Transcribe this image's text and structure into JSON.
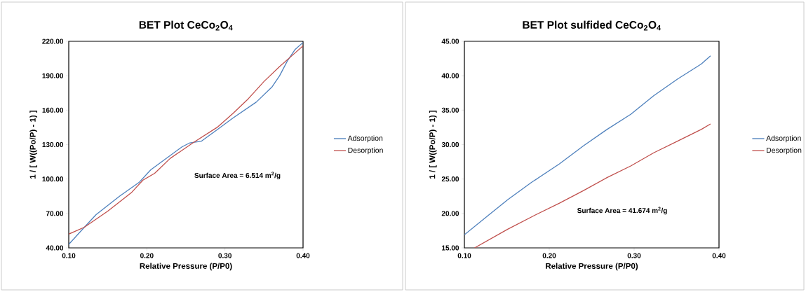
{
  "chart_data": [
    {
      "type": "line",
      "title": "BET Plot CeCo$_{2}$O$_{4}$",
      "xlabel": "Relative Pressure (P/P0)",
      "ylabel": "1 / [ W((Po/P) - 1) ]",
      "xlim": [
        0.1,
        0.4
      ],
      "ylim": [
        40,
        220
      ],
      "xticks": [
        {
          "value": 0.1,
          "label": "0.10"
        },
        {
          "value": 0.2,
          "label": "0.20"
        },
        {
          "value": 0.3,
          "label": "0.30"
        },
        {
          "value": 0.4,
          "label": "0.40"
        }
      ],
      "yticks": [
        {
          "value": 40,
          "label": "40.00"
        },
        {
          "value": 70,
          "label": "70.00"
        },
        {
          "value": 100,
          "label": "100.00"
        },
        {
          "value": 130,
          "label": "130.00"
        },
        {
          "value": 160,
          "label": "160.00"
        },
        {
          "value": 190,
          "label": "190.00"
        },
        {
          "value": 220,
          "label": "220.00"
        }
      ],
      "legend": "right",
      "grid": false,
      "marker": "none",
      "annotations": [
        "Surface Area = 6.514 m$^{2}$/g"
      ],
      "series": [
        {
          "name": "Adsorption",
          "color": "#4f81bd",
          "x": [
            0.1,
            0.12,
            0.135,
            0.165,
            0.19,
            0.205,
            0.225,
            0.245,
            0.255,
            0.27,
            0.29,
            0.31,
            0.34,
            0.36,
            0.37,
            0.38,
            0.39,
            0.4
          ],
          "values": [
            43,
            58,
            69,
            85,
            97,
            108,
            118,
            128,
            131.5,
            133,
            143,
            153,
            167,
            180,
            190,
            203,
            213,
            219
          ]
        },
        {
          "name": "Desorption",
          "color": "#c0504d",
          "x": [
            0.1,
            0.12,
            0.15,
            0.18,
            0.195,
            0.21,
            0.23,
            0.26,
            0.29,
            0.31,
            0.33,
            0.35,
            0.37,
            0.39,
            0.4
          ],
          "values": [
            52,
            58,
            72,
            88,
            99,
            105,
            118,
            132,
            145,
            157,
            170,
            185,
            198,
            210,
            216
          ]
        }
      ]
    },
    {
      "type": "line",
      "title": "BET Plot sulfided CeCo$_{2}$O$_{4}$",
      "xlabel": "Relative Pressure (P/P0)",
      "ylabel": "1 / [ W((Po/P) - 1) ]",
      "xlim": [
        0.1,
        0.4
      ],
      "ylim": [
        15,
        45
      ],
      "xticks": [
        {
          "value": 0.1,
          "label": "0.10"
        },
        {
          "value": 0.2,
          "label": "0.20"
        },
        {
          "value": 0.3,
          "label": "0.30"
        },
        {
          "value": 0.4,
          "label": "0.40"
        }
      ],
      "yticks": [
        {
          "value": 15,
          "label": "15.00"
        },
        {
          "value": 20,
          "label": "20.00"
        },
        {
          "value": 25,
          "label": "25.00"
        },
        {
          "value": 30,
          "label": "30.00"
        },
        {
          "value": 35,
          "label": "35.00"
        },
        {
          "value": 40,
          "label": "40.00"
        },
        {
          "value": 45,
          "label": "45.00"
        }
      ],
      "legend": "right",
      "grid": false,
      "marker": "none",
      "annotations": [
        "Surface Area = 41.674 m$^{2}$/g"
      ],
      "series": [
        {
          "name": "Adsorption",
          "color": "#4f81bd",
          "x": [
            0.1,
            0.129,
            0.151,
            0.179,
            0.212,
            0.24,
            0.268,
            0.296,
            0.323,
            0.351,
            0.379,
            0.39
          ],
          "values": [
            16.9,
            19.8,
            22.0,
            24.5,
            27.2,
            29.8,
            32.2,
            34.4,
            37.1,
            39.5,
            41.7,
            42.9
          ]
        },
        {
          "name": "Desorption",
          "color": "#c0504d",
          "x": [
            0.112,
            0.151,
            0.184,
            0.212,
            0.24,
            0.268,
            0.296,
            0.323,
            0.351,
            0.379,
            0.39
          ],
          "values": [
            15.0,
            17.7,
            19.8,
            21.5,
            23.3,
            25.2,
            26.9,
            28.8,
            30.5,
            32.2,
            33.0
          ]
        }
      ]
    }
  ]
}
